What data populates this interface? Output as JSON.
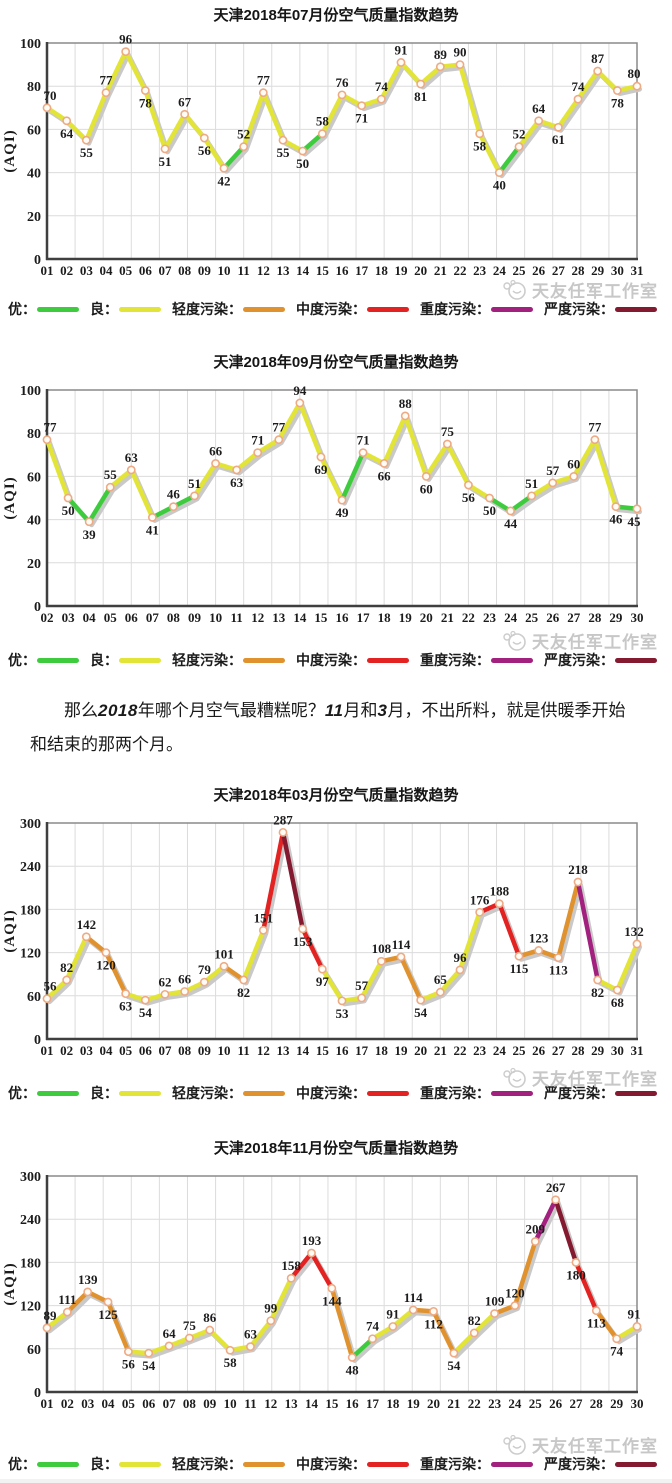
{
  "watermark": {
    "text": "天友任军工作室"
  },
  "aqi_levels": [
    {
      "label": "优：",
      "max": 50,
      "color": "#3ecc3e"
    },
    {
      "label": "良：",
      "max": 100,
      "color": "#e2e438"
    },
    {
      "label": "轻度污染：",
      "max": 150,
      "color": "#e0922e"
    },
    {
      "label": "中度污染：",
      "max": 200,
      "color": "#e32222"
    },
    {
      "label": "重度污染：",
      "max": 250,
      "color": "#a2207e"
    },
    {
      "label": "严度污染：",
      "max": 1000,
      "color": "#841a30"
    }
  ],
  "style": {
    "marker_fill": "#fffcf6",
    "marker_stroke": "#edaa85",
    "shadow": "#c9c9c9",
    "grid": "#dcdcdc",
    "border": "#8a8a8a",
    "axis": "#3f3f3f",
    "label_color": "#1c1c1c"
  },
  "commentary": {
    "segments": [
      {
        "text": "那么",
        "emph": false
      },
      {
        "text": "2018",
        "emph": true
      },
      {
        "text": "年哪个月空气最糟糕呢？",
        "emph": false
      },
      {
        "text": "11",
        "emph": true
      },
      {
        "text": "月和",
        "emph": false
      },
      {
        "text": "3",
        "emph": true
      },
      {
        "text": "月，不出所料，就是供暖季开始和结束的那两个月。",
        "emph": false
      }
    ]
  },
  "chart_data": [
    {
      "type": "line",
      "title": "天津2018年07月份空气质量指数趋势",
      "ylabel": "(AQI)",
      "ylim": [
        0,
        100
      ],
      "yticks": [
        0,
        20,
        40,
        60,
        80,
        100
      ],
      "x_days": [
        "01",
        "02",
        "03",
        "04",
        "05",
        "06",
        "07",
        "08",
        "09",
        "10",
        "11",
        "12",
        "13",
        "14",
        "15",
        "16",
        "17",
        "18",
        "19",
        "20",
        "21",
        "22",
        "23",
        "24",
        "25",
        "26",
        "27",
        "28",
        "29",
        "30",
        "31"
      ],
      "values": [
        70,
        64,
        55,
        77,
        96,
        78,
        51,
        67,
        56,
        42,
        52,
        77,
        55,
        50,
        58,
        76,
        71,
        74,
        91,
        81,
        89,
        90,
        58,
        40,
        52,
        64,
        61,
        74,
        87,
        78,
        80
      ]
    },
    {
      "type": "line",
      "title": "天津2018年09月份空气质量指数趋势",
      "ylabel": "(AQI)",
      "ylim": [
        0,
        100
      ],
      "yticks": [
        0,
        20,
        40,
        60,
        80,
        100
      ],
      "x_days": [
        "02",
        "03",
        "04",
        "05",
        "06",
        "07",
        "08",
        "09",
        "10",
        "11",
        "12",
        "13",
        "14",
        "15",
        "16",
        "17",
        "18",
        "19",
        "20",
        "21",
        "22",
        "23",
        "24",
        "25",
        "26",
        "27",
        "28",
        "29",
        "30"
      ],
      "values": [
        77,
        50,
        39,
        55,
        63,
        41,
        46,
        51,
        66,
        63,
        71,
        77,
        94,
        69,
        49,
        71,
        66,
        88,
        60,
        75,
        56,
        50,
        44,
        51,
        57,
        60,
        77,
        46,
        45
      ]
    },
    {
      "type": "line",
      "title": "天津2018年03月份空气质量指数趋势",
      "ylabel": "(AQI)",
      "ylim": [
        0,
        300
      ],
      "yticks": [
        0,
        60,
        120,
        180,
        240,
        300
      ],
      "x_days": [
        "01",
        "02",
        "03",
        "04",
        "05",
        "06",
        "07",
        "08",
        "09",
        "10",
        "11",
        "12",
        "13",
        "14",
        "15",
        "16",
        "17",
        "18",
        "19",
        "20",
        "21",
        "22",
        "23",
        "24",
        "25",
        "26",
        "27",
        "28",
        "29",
        "30",
        "31"
      ],
      "values": [
        56,
        82,
        142,
        120,
        63,
        54,
        62,
        66,
        79,
        101,
        82,
        151,
        287,
        153,
        97,
        53,
        57,
        108,
        114,
        54,
        65,
        96,
        176,
        188,
        115,
        123,
        113,
        218,
        82,
        68,
        132
      ]
    },
    {
      "type": "line",
      "title": "天津2018年11月份空气质量指数趋势",
      "ylabel": "(AQI)",
      "ylim": [
        0,
        300
      ],
      "yticks": [
        0,
        60,
        120,
        180,
        240,
        300
      ],
      "x_days": [
        "01",
        "02",
        "03",
        "04",
        "05",
        "06",
        "07",
        "08",
        "09",
        "10",
        "11",
        "12",
        "13",
        "14",
        "15",
        "16",
        "17",
        "18",
        "19",
        "20",
        "21",
        "22",
        "23",
        "24",
        "25",
        "26",
        "27",
        "28",
        "29",
        "30"
      ],
      "values": [
        89,
        111,
        139,
        125,
        56,
        54,
        64,
        75,
        86,
        58,
        63,
        99,
        158,
        193,
        144,
        48,
        74,
        91,
        114,
        112,
        54,
        82,
        109,
        120,
        209,
        267,
        180,
        113,
        74,
        91
      ]
    }
  ]
}
